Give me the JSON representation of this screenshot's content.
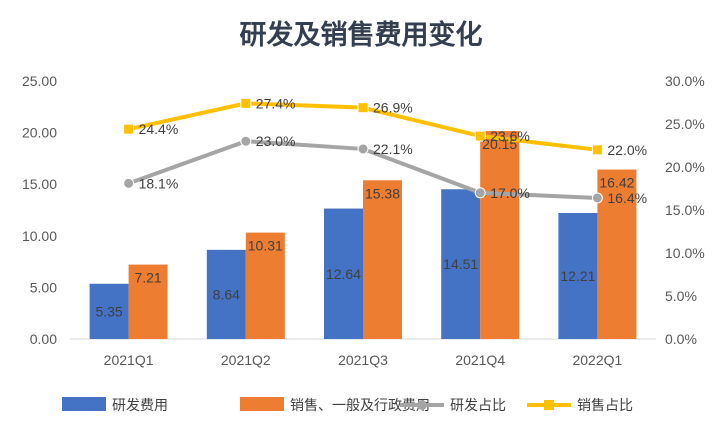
{
  "chart_data": {
    "type": "bar",
    "title": "研发及销售费用变化",
    "categories": [
      "2021Q1",
      "2021Q2",
      "2021Q3",
      "2021Q4",
      "2022Q1"
    ],
    "y_left": {
      "ylim": [
        0,
        25
      ],
      "ticks": [
        "0.00",
        "5.00",
        "10.00",
        "15.00",
        "20.00",
        "25.00"
      ]
    },
    "y_right": {
      "ylim": [
        0,
        30
      ],
      "ticks": [
        "0.0%",
        "5.0%",
        "10.0%",
        "15.0%",
        "20.0%",
        "25.0%",
        "30.0%"
      ]
    },
    "series": [
      {
        "name": "研发费用",
        "type": "bar",
        "axis": "left",
        "color": "#4472c4",
        "values": [
          5.35,
          8.64,
          12.64,
          14.51,
          12.21
        ],
        "labels": [
          "5.35",
          "8.64",
          "12.64",
          "14.51",
          "12.21"
        ]
      },
      {
        "name": "销售、一般及行政费用",
        "type": "bar",
        "axis": "left",
        "color": "#ed7d31",
        "values": [
          7.21,
          10.31,
          15.38,
          20.15,
          16.42
        ],
        "labels": [
          "7.21",
          "10.31",
          "15.38",
          "20.15",
          "16.42"
        ]
      },
      {
        "name": "研发占比",
        "type": "line",
        "axis": "right",
        "color": "#a5a5a5",
        "values": [
          18.1,
          23.0,
          22.1,
          17.0,
          16.4
        ],
        "labels": [
          "18.1%",
          "23.0%",
          "22.1%",
          "17.0%",
          "16.4%"
        ]
      },
      {
        "name": "销售占比",
        "type": "line",
        "axis": "right",
        "color": "#ffc000",
        "values": [
          24.4,
          27.4,
          26.9,
          23.6,
          22.0
        ],
        "labels": [
          "24.4%",
          "27.4%",
          "26.9%",
          "23.6%",
          "22.0%"
        ]
      }
    ],
    "grid": false,
    "legend": "bottom"
  }
}
